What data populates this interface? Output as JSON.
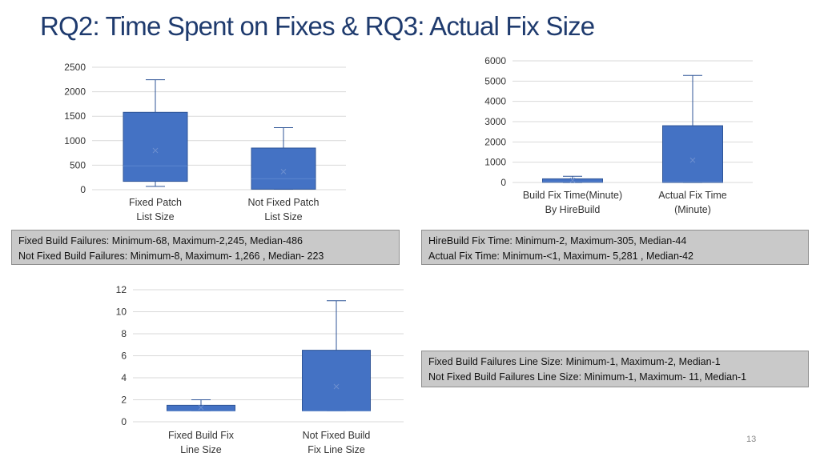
{
  "slide": {
    "title": "RQ2: Time Spent on Fixes & RQ3: Actual Fix Size",
    "page_number": "13"
  },
  "notes": [
    {
      "lines": [
        "Fixed Build Failures: Minimum-68, Maximum-2,245, Median-486",
        "Not Fixed Build Failures: Minimum-8, Maximum- 1,266 , Median- 223"
      ]
    },
    {
      "lines": [
        "HireBuild Fix Time: Minimum-2, Maximum-305, Median-44",
        "Actual Fix Time: Minimum-<1, Maximum- 5,281 , Median-42"
      ]
    },
    {
      "lines": [
        "Fixed Build Failures Line Size: Minimum-1, Maximum-2, Median-1",
        "Not Fixed Build Failures Line Size: Minimum-1, Maximum- 11, Median-1"
      ]
    }
  ],
  "colors": {
    "box_fill": "#4472c4",
    "box_stroke": "#2f5597",
    "grid": "#d9d9d9"
  },
  "chart_data": [
    {
      "type": "box",
      "title": "",
      "ylim": [
        0,
        2500
      ],
      "yticks": [
        0,
        500,
        1000,
        1500,
        2000,
        2500
      ],
      "ytick_labels": [
        "0",
        "500",
        "1000",
        "1500",
        "2000",
        "2500"
      ],
      "categories": [
        [
          "Fixed Patch",
          "List Size"
        ],
        [
          "Not Fixed Patch",
          "List Size"
        ]
      ],
      "boxes": [
        {
          "min": 68,
          "q1": 170,
          "median": 486,
          "q3": 1580,
          "max": 2245,
          "mean": 800
        },
        {
          "min": 8,
          "q1": 10,
          "median": 223,
          "q3": 850,
          "max": 1266,
          "mean": 370
        }
      ]
    },
    {
      "type": "box",
      "title": "",
      "ylim": [
        0,
        6000
      ],
      "yticks": [
        0,
        1000,
        2000,
        3000,
        4000,
        5000,
        6000
      ],
      "ytick_labels": [
        "0",
        "1000",
        "2000",
        "3000",
        "4000",
        "5000",
        "6000"
      ],
      "categories": [
        [
          "Build Fix Time(Minute)",
          "By HireBuild"
        ],
        [
          "Actual Fix Time",
          "(Minute)"
        ]
      ],
      "boxes": [
        {
          "min": 2,
          "q1": 10,
          "median": 44,
          "q3": 180,
          "max": 305,
          "mean": 110
        },
        {
          "min": 0,
          "q1": 5,
          "median": 42,
          "q3": 2800,
          "max": 5281,
          "mean": 1100
        }
      ]
    },
    {
      "type": "box",
      "title": "",
      "ylim": [
        0,
        12
      ],
      "yticks": [
        0,
        2,
        4,
        6,
        8,
        10,
        12
      ],
      "ytick_labels": [
        "0",
        "2",
        "4",
        "6",
        "8",
        "10",
        "12"
      ],
      "categories": [
        [
          "Fixed Build Fix",
          "Line Size"
        ],
        [
          "Not Fixed Build",
          "Fix Line Size"
        ]
      ],
      "boxes": [
        {
          "min": 1,
          "q1": 1,
          "median": 1,
          "q3": 1.5,
          "max": 2,
          "mean": 1.3
        },
        {
          "min": 1,
          "q1": 1,
          "median": 1,
          "q3": 6.5,
          "max": 11,
          "mean": 3.2
        }
      ]
    }
  ]
}
